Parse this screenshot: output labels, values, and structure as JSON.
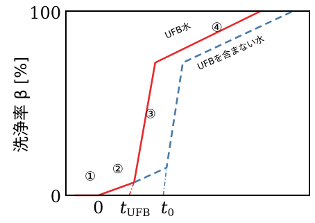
{
  "chart_data": {
    "type": "line",
    "ylabel": "洗浄率 β [%]",
    "ylim": [
      0,
      100
    ],
    "yticks": [
      "0",
      "100"
    ],
    "xticks": [
      {
        "label": "0",
        "x": 0
      },
      {
        "label": "t_UFB",
        "main": "t",
        "sub": "UFB",
        "x": 2
      },
      {
        "label": "t_0",
        "main": "t",
        "sub": "0",
        "x": 4
      }
    ],
    "xlim": [
      -2,
      13
    ],
    "grid": false,
    "series": [
      {
        "name": "UFB水",
        "color": "#e8282b",
        "dash": "solid",
        "points": [
          [
            -1.5,
            0
          ],
          [
            0,
            0
          ],
          [
            2.2,
            7
          ],
          [
            3.5,
            72
          ],
          [
            10,
            100
          ]
        ],
        "label_position": [
          4.2,
          85
        ]
      },
      {
        "name": "UFBを含まない水",
        "color": "#4a7aa8",
        "dash": "dashed",
        "points": [
          [
            2.2,
            7
          ],
          [
            4.2,
            15
          ],
          [
            5.2,
            72
          ],
          [
            12,
            100
          ]
        ],
        "label_position": [
          6.2,
          68
        ]
      }
    ],
    "connector_lines": [
      {
        "color": "#e8282b",
        "points": [
          [
            1.9,
            0
          ],
          [
            2.2,
            7
          ]
        ]
      },
      {
        "color": "#4a7aa8",
        "points": [
          [
            4.0,
            0
          ],
          [
            4.2,
            15
          ]
        ]
      }
    ],
    "phase_markers": [
      {
        "label": "①",
        "x": -0.5,
        "y": 8
      },
      {
        "label": "②",
        "x": 1.2,
        "y": 12
      },
      {
        "label": "③",
        "x": 3.2,
        "y": 42
      },
      {
        "label": "④",
        "x": 7.3,
        "y": 89
      }
    ]
  }
}
